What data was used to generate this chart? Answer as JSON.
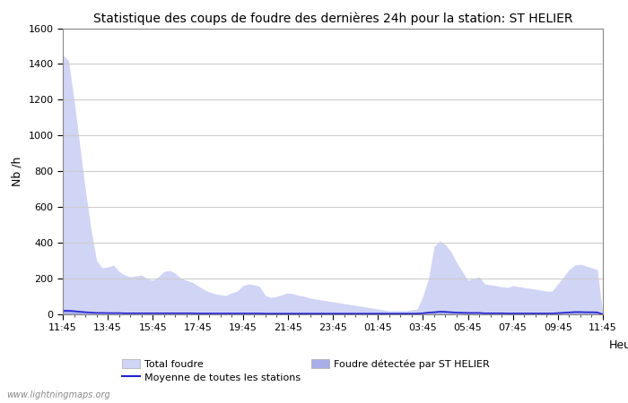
{
  "title": "Statistique des coups de foudre des dernières 24h pour la station: ST HELIER",
  "ylabel": "Nb /h",
  "xlabel": "Heure",
  "xlim": [
    0,
    96
  ],
  "ylim": [
    0,
    1600
  ],
  "yticks": [
    0,
    200,
    400,
    600,
    800,
    1000,
    1200,
    1400,
    1600
  ],
  "xtick_labels": [
    "11:45",
    "13:45",
    "15:45",
    "17:45",
    "19:45",
    "21:45",
    "23:45",
    "01:45",
    "03:45",
    "05:45",
    "07:45",
    "09:45",
    "11:45"
  ],
  "xtick_positions": [
    0,
    8,
    16,
    24,
    32,
    40,
    48,
    56,
    64,
    72,
    80,
    88,
    96
  ],
  "background_color": "#ffffff",
  "grid_color": "#cccccc",
  "fill_total_color": "#d0d4f5",
  "fill_station_color": "#a8aee8",
  "line_avg_color": "#2222cc",
  "watermark": "www.lightningmaps.org",
  "legend": {
    "total": "Total foudre",
    "avg": "Moyenne de toutes les stations",
    "station": "Foudre détectée par ST HELIER"
  },
  "total_foudre": [
    1450,
    1420,
    1200,
    950,
    700,
    480,
    300,
    260,
    265,
    275,
    240,
    220,
    210,
    215,
    220,
    200,
    190,
    210,
    240,
    245,
    230,
    200,
    190,
    180,
    160,
    140,
    125,
    115,
    110,
    105,
    120,
    130,
    160,
    170,
    165,
    155,
    105,
    95,
    100,
    110,
    120,
    115,
    105,
    100,
    90,
    85,
    80,
    75,
    70,
    65,
    60,
    55,
    50,
    45,
    40,
    35,
    30,
    25,
    20,
    20,
    20,
    20,
    25,
    30,
    100,
    200,
    380,
    410,
    390,
    350,
    290,
    240,
    190,
    200,
    210,
    170,
    165,
    160,
    155,
    150,
    160,
    155,
    150,
    145,
    140,
    135,
    130,
    130,
    170,
    210,
    250,
    275,
    280,
    270,
    260,
    250,
    0
  ],
  "station_foudre": [
    30,
    25,
    20,
    15,
    10,
    8,
    5,
    5,
    4,
    4,
    4,
    3,
    3,
    3,
    3,
    3,
    3,
    3,
    3,
    3,
    3,
    3,
    3,
    3,
    3,
    3,
    3,
    3,
    3,
    3,
    3,
    3,
    3,
    3,
    3,
    3,
    2,
    2,
    2,
    2,
    2,
    2,
    2,
    2,
    2,
    2,
    2,
    2,
    2,
    2,
    2,
    2,
    2,
    2,
    2,
    2,
    2,
    2,
    2,
    2,
    2,
    2,
    2,
    2,
    5,
    10,
    15,
    20,
    18,
    15,
    12,
    10,
    8,
    8,
    8,
    6,
    6,
    6,
    6,
    5,
    5,
    5,
    5,
    5,
    5,
    5,
    5,
    5,
    8,
    10,
    12,
    15,
    15,
    14,
    13,
    12,
    0
  ],
  "avg_foudre": [
    20,
    20,
    18,
    15,
    12,
    10,
    8,
    8,
    7,
    7,
    7,
    6,
    6,
    6,
    6,
    6,
    6,
    6,
    6,
    6,
    6,
    6,
    6,
    6,
    5,
    5,
    5,
    5,
    5,
    5,
    5,
    5,
    5,
    5,
    5,
    5,
    4,
    4,
    4,
    4,
    4,
    4,
    4,
    4,
    4,
    4,
    4,
    4,
    4,
    4,
    4,
    4,
    4,
    4,
    4,
    4,
    4,
    4,
    4,
    4,
    4,
    4,
    4,
    4,
    6,
    10,
    12,
    15,
    14,
    12,
    10,
    9,
    8,
    8,
    8,
    6,
    6,
    6,
    6,
    5,
    5,
    5,
    5,
    5,
    5,
    5,
    5,
    5,
    7,
    9,
    11,
    13,
    13,
    12,
    12,
    11,
    0
  ]
}
